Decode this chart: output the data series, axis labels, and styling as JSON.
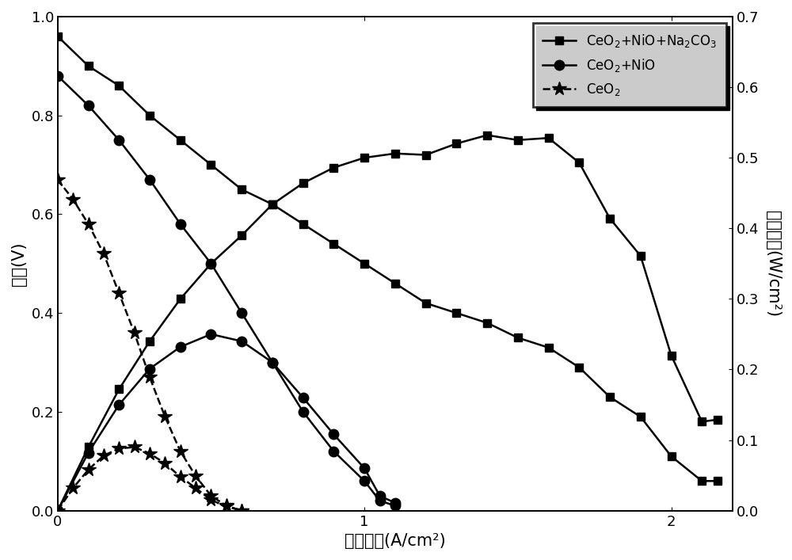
{
  "v1_x": [
    0.0,
    0.1,
    0.2,
    0.3,
    0.4,
    0.5,
    0.6,
    0.7,
    0.8,
    0.9,
    1.0,
    1.1,
    1.2,
    1.3,
    1.4,
    1.5,
    1.6,
    1.7,
    1.8,
    1.9,
    2.0,
    2.1,
    2.15
  ],
  "v1_y": [
    0.96,
    0.9,
    0.86,
    0.8,
    0.75,
    0.7,
    0.65,
    0.62,
    0.58,
    0.54,
    0.5,
    0.46,
    0.42,
    0.4,
    0.38,
    0.35,
    0.33,
    0.29,
    0.23,
    0.19,
    0.11,
    0.06,
    0.06
  ],
  "p1_x": [
    0.0,
    0.1,
    0.2,
    0.3,
    0.4,
    0.5,
    0.6,
    0.7,
    0.8,
    0.9,
    1.0,
    1.1,
    1.2,
    1.3,
    1.4,
    1.5,
    1.6,
    1.7,
    1.8,
    1.9,
    2.0,
    2.1,
    2.15
  ],
  "p1_y": [
    0.0,
    0.09,
    0.172,
    0.24,
    0.3,
    0.35,
    0.39,
    0.434,
    0.464,
    0.486,
    0.5,
    0.506,
    0.504,
    0.52,
    0.532,
    0.525,
    0.528,
    0.493,
    0.414,
    0.361,
    0.22,
    0.126,
    0.129
  ],
  "v2_x": [
    0.0,
    0.1,
    0.2,
    0.3,
    0.4,
    0.5,
    0.6,
    0.7,
    0.8,
    0.9,
    1.0,
    1.05,
    1.1
  ],
  "v2_y": [
    0.88,
    0.82,
    0.75,
    0.67,
    0.58,
    0.5,
    0.4,
    0.3,
    0.2,
    0.12,
    0.06,
    0.02,
    0.01
  ],
  "p2_x": [
    0.0,
    0.1,
    0.2,
    0.3,
    0.4,
    0.5,
    0.6,
    0.7,
    0.8,
    0.9,
    1.0,
    1.05,
    1.1
  ],
  "p2_y": [
    0.0,
    0.082,
    0.15,
    0.201,
    0.232,
    0.25,
    0.24,
    0.21,
    0.16,
    0.108,
    0.06,
    0.021,
    0.011
  ],
  "v3_x": [
    0.0,
    0.05,
    0.1,
    0.15,
    0.2,
    0.25,
    0.3,
    0.35,
    0.4,
    0.45,
    0.5,
    0.55,
    0.6
  ],
  "v3_y": [
    0.67,
    0.63,
    0.58,
    0.52,
    0.44,
    0.36,
    0.27,
    0.19,
    0.12,
    0.07,
    0.03,
    0.01,
    0.0
  ],
  "p3_x": [
    0.0,
    0.05,
    0.1,
    0.15,
    0.2,
    0.25,
    0.3,
    0.35,
    0.4,
    0.45,
    0.5,
    0.55,
    0.6
  ],
  "p3_y": [
    0.0,
    0.032,
    0.058,
    0.078,
    0.088,
    0.09,
    0.081,
    0.067,
    0.048,
    0.032,
    0.015,
    0.006,
    0.0
  ],
  "label1": "CeO$_2$+NiO+Na$_2$CO$_3$",
  "label2": "CeO$_2$+NiO",
  "label3": "CeO$_2$",
  "xlabel": "电流密度(A/cm²)",
  "ylabel_left": "电压(V)",
  "ylabel_right": "功率密度(W/cm²)",
  "xlim": [
    0,
    2.2
  ],
  "ylim_left": [
    0.0,
    1.0
  ],
  "ylim_right": [
    0.0,
    0.7
  ],
  "xticks": [
    0,
    1,
    2
  ],
  "yticks_left": [
    0.0,
    0.2,
    0.4,
    0.6,
    0.8,
    1.0
  ],
  "yticks_right": [
    0.0,
    0.1,
    0.2,
    0.3,
    0.4,
    0.5,
    0.6,
    0.7
  ]
}
